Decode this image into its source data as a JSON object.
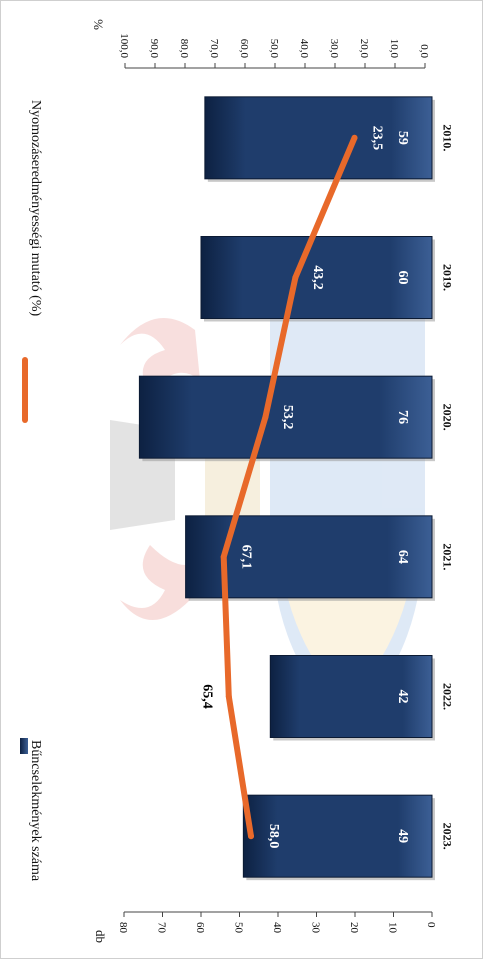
{
  "chart_data": {
    "type": "bar",
    "orientation": "rotated-90",
    "categories": [
      "2010.",
      "2019.",
      "2020.",
      "2021.",
      "2022.",
      "2023."
    ],
    "series": [
      {
        "name": "Bűncselekmények száma",
        "kind": "bar",
        "axis": "left",
        "values": [
          59,
          60,
          76,
          64,
          42,
          49
        ],
        "labels": [
          "59",
          "60",
          "76",
          "64",
          "42",
          "49"
        ],
        "color": "#1f3a66"
      },
      {
        "name": "Nyomozáseredményességi mutató (%)",
        "kind": "line",
        "axis": "right",
        "values": [
          23.5,
          43.2,
          53.2,
          67.1,
          65.4,
          58.0
        ],
        "labels": [
          "23,5",
          "43,2",
          "53,2",
          "67,1",
          "65,4",
          "58,0"
        ],
        "color": "#e8692a"
      }
    ],
    "left_axis": {
      "label": "db",
      "ylim": [
        0,
        80
      ],
      "ticks": [
        "0",
        "10",
        "20",
        "30",
        "40",
        "50",
        "60",
        "70",
        "80"
      ]
    },
    "right_axis": {
      "label": "%",
      "ylim": [
        0,
        100
      ],
      "ticks": [
        "0,0",
        "10,0",
        "20,0",
        "30,0",
        "40,0",
        "50,0",
        "60,0",
        "70,0",
        "80,0",
        "90,0",
        "100,0"
      ]
    },
    "legend": {
      "placement": "top"
    },
    "grid": false
  }
}
